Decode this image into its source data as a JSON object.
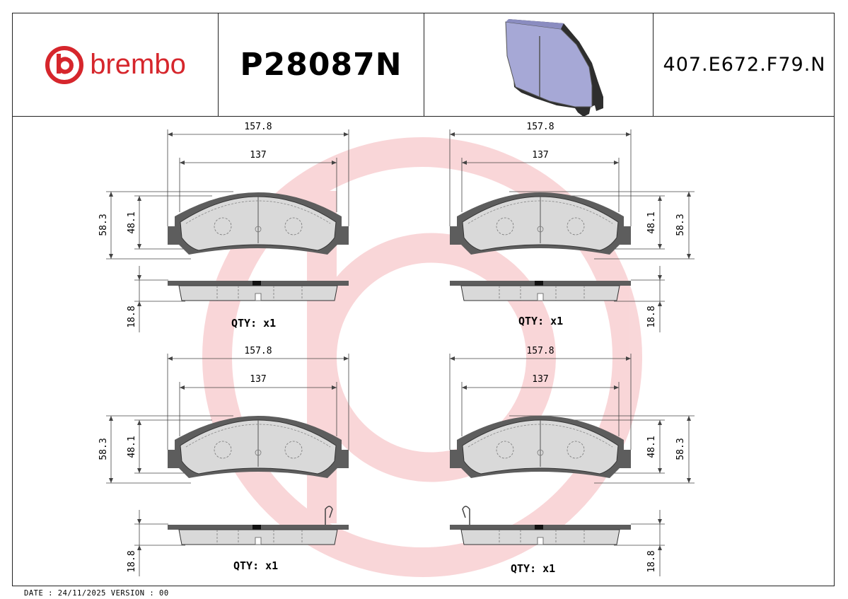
{
  "header": {
    "brand": "brembo",
    "part_number": "P28087N",
    "reference": "407.E672.F79.N",
    "brand_color": "#d6262c"
  },
  "drawings": [
    {
      "width_total": "157.8",
      "width_inner": "137",
      "height_total": "58.3",
      "height_inner": "48.1",
      "thickness": "18.8",
      "qty_label": "QTY:",
      "qty_value": "x1"
    },
    {
      "width_total": "157.8",
      "width_inner": "137",
      "height_total": "58.3",
      "height_inner": "48.1",
      "thickness": "18.8",
      "qty_label": "QTY:",
      "qty_value": "x1"
    },
    {
      "width_total": "157.8",
      "width_inner": "137",
      "height_total": "58.3",
      "height_inner": "48.1",
      "thickness": "18.8",
      "qty_label": "QTY:",
      "qty_value": "x1"
    },
    {
      "width_total": "157.8",
      "width_inner": "137",
      "height_total": "58.3",
      "height_inner": "48.1",
      "thickness": "18.8",
      "qty_label": "QTY:",
      "qty_value": "x1"
    }
  ],
  "footer": {
    "text": "DATE : 24/11/2025 VERSION : 00"
  },
  "icons": [
    "brembo-logo-icon",
    "brake-pad-3d-icon"
  ]
}
